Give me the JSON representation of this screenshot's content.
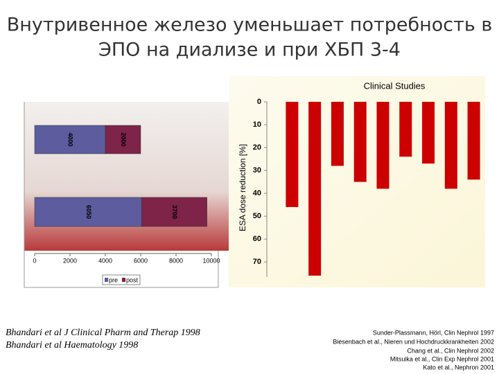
{
  "title": [
    "Внутривенное железо уменьшает потребность в",
    "ЭПО на диализе и при ХБП 3-4"
  ],
  "citations": {
    "left": [
      "Bhandari et al J Clinical Pharm and Therap 1998",
      "Bhandari et al Haematology 1998"
    ],
    "right": [
      "Sunder-Plassmann, Hörl, Clin Nephrol 1997",
      "Biesenbach et al., Nieren und Hochdruckkrankheiten 2002",
      "Chang et al., Clin Nephrol 2002",
      "Mitsuika et al., Clin Exp Nephrol 2001",
      "Kato et al., Nephron 2001"
    ]
  },
  "chart_data": [
    {
      "type": "hbar_stacked",
      "categories": [
        null,
        null
      ],
      "series": [
        {
          "name": "pre",
          "color": "#5c5c9e",
          "values": [
            4000,
            6050
          ]
        },
        {
          "name": "post",
          "color": "#7d2448",
          "values": [
            2000,
            3700
          ]
        }
      ],
      "xlim": [
        0,
        10000
      ],
      "xticks": [
        0,
        2000,
        4000,
        6000,
        8000,
        10000
      ]
    },
    {
      "type": "bar",
      "title": "Clinical Studies",
      "y_label": "ESA dose reduction [%]",
      "categories": [
        null,
        null,
        null,
        null,
        null,
        null,
        null,
        null,
        null
      ],
      "values": [
        46,
        76,
        28,
        35,
        38,
        24,
        27,
        38,
        34
      ],
      "color": "#cc0000",
      "ylim": [
        0,
        76
      ],
      "yticks": [
        0,
        10,
        20,
        30,
        40,
        50,
        60,
        70
      ],
      "y_inverted": true
    }
  ]
}
